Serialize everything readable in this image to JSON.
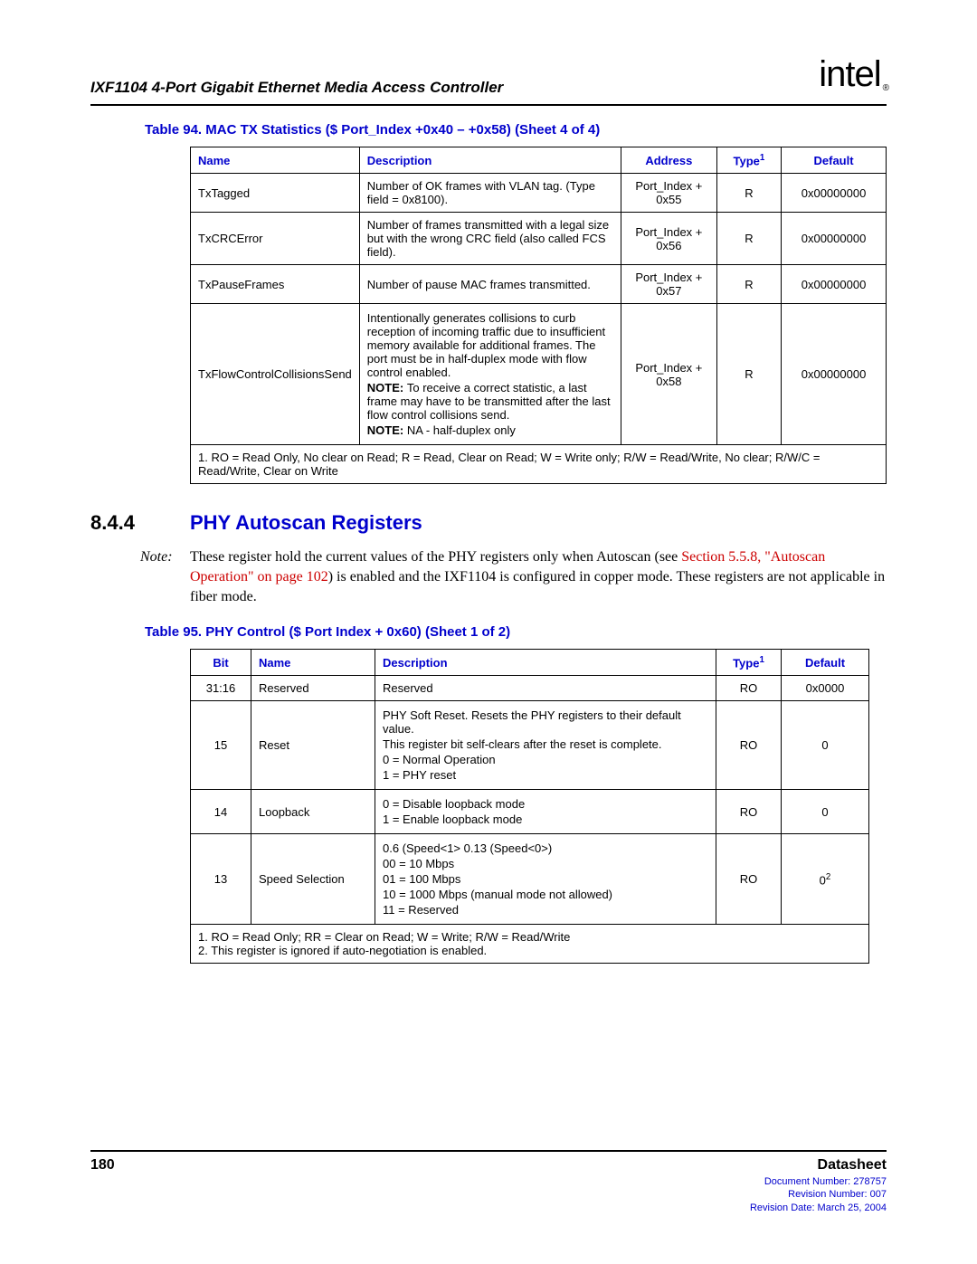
{
  "header": {
    "docTitle": "IXF1104 4-Port Gigabit Ethernet Media Access Controller",
    "logoText": "intel",
    "logoSub": "®"
  },
  "table94": {
    "title": "Table 94. MAC TX Statistics ($ Port_Index +0x40 – +0x58) (Sheet 4 of 4)",
    "headers": {
      "name": "Name",
      "description": "Description",
      "address": "Address",
      "type": "Type",
      "typeSup": "1",
      "default": "Default"
    },
    "rows": [
      {
        "name": "TxTagged",
        "desc": "Number of OK frames with VLAN tag. (Type field = 0x8100).",
        "addr": "Port_Index + 0x55",
        "type": "R",
        "default": "0x00000000"
      },
      {
        "name": "TxCRCError",
        "desc": "Number of frames transmitted with a legal size but with the wrong CRC field (also called FCS field).",
        "addr": "Port_Index + 0x56",
        "type": "R",
        "default": "0x00000000"
      },
      {
        "name": "TxPauseFrames",
        "desc": "Number of pause MAC frames transmitted.",
        "addr": "Port_Index + 0x57",
        "type": "R",
        "default": "0x00000000"
      },
      {
        "name": "TxFlowControlCollisionsSend",
        "descMain": "Intentionally generates collisions to curb reception of incoming traffic due to insufficient memory available for additional frames. The port must be in half-duplex mode with flow control enabled.",
        "note1Label": "NOTE:",
        "note1Text": "To receive a correct statistic, a last frame may have to be transmitted after the last flow control collisions send.",
        "note2Label": "NOTE:",
        "note2Text": "NA - half-duplex only",
        "addr": "Port_Index + 0x58",
        "type": "R",
        "default": "0x00000000"
      }
    ],
    "footnote": "1. RO = Read Only, No clear on Read; R = Read, Clear on Read; W = Write only; R/W = Read/Write, No clear; R/W/C = Read/Write, Clear on Write"
  },
  "section": {
    "num": "8.4.4",
    "title": "PHY Autoscan Registers"
  },
  "note": {
    "label": "Note:",
    "pre": "These register hold the current values of the PHY registers only when Autoscan (see ",
    "link": "Section 5.5.8, \"Autoscan Operation\" on page 102",
    "post": ") is enabled and the IXF1104 is configured in copper mode. These registers are not applicable in fiber mode."
  },
  "table95": {
    "title": "Table 95. PHY Control ($ Port Index + 0x60) (Sheet 1 of 2)",
    "headers": {
      "bit": "Bit",
      "name": "Name",
      "description": "Description",
      "type": "Type",
      "typeSup": "1",
      "default": "Default"
    },
    "rows": [
      {
        "bit": "31:16",
        "name": "Reserved",
        "desc": "Reserved",
        "type": "RO",
        "default": "0x0000"
      },
      {
        "bit": "15",
        "name": "Reset",
        "descLines": [
          "PHY Soft Reset. Resets the PHY registers to their default value.",
          "This register bit self-clears after the reset is complete.",
          "0 = Normal Operation",
          "1 = PHY reset"
        ],
        "type": "RO",
        "default": "0"
      },
      {
        "bit": "14",
        "name": "Loopback",
        "descLines": [
          "0 = Disable loopback mode",
          "1 = Enable loopback mode"
        ],
        "type": "RO",
        "default": "0"
      },
      {
        "bit": "13",
        "name": "Speed Selection",
        "descLines": [
          "0.6 (Speed<1> 0.13 (Speed<0>)",
          "00 = 10 Mbps",
          "01 = 100 Mbps",
          "10 = 1000 Mbps (manual mode not allowed)",
          "11 = Reserved"
        ],
        "type": "RO",
        "default": "0",
        "defaultSup": "2"
      }
    ],
    "footnote1": "1. RO = Read Only; RR = Clear on Read; W = Write; R/W = Read/Write",
    "footnote2": "2. This register is ignored if auto-negotiation is enabled."
  },
  "footer": {
    "pageNum": "180",
    "label": "Datasheet",
    "docNum": "Document Number: 278757",
    "revNum": "Revision Number: 007",
    "revDate": "Revision Date: March 25, 2004"
  }
}
